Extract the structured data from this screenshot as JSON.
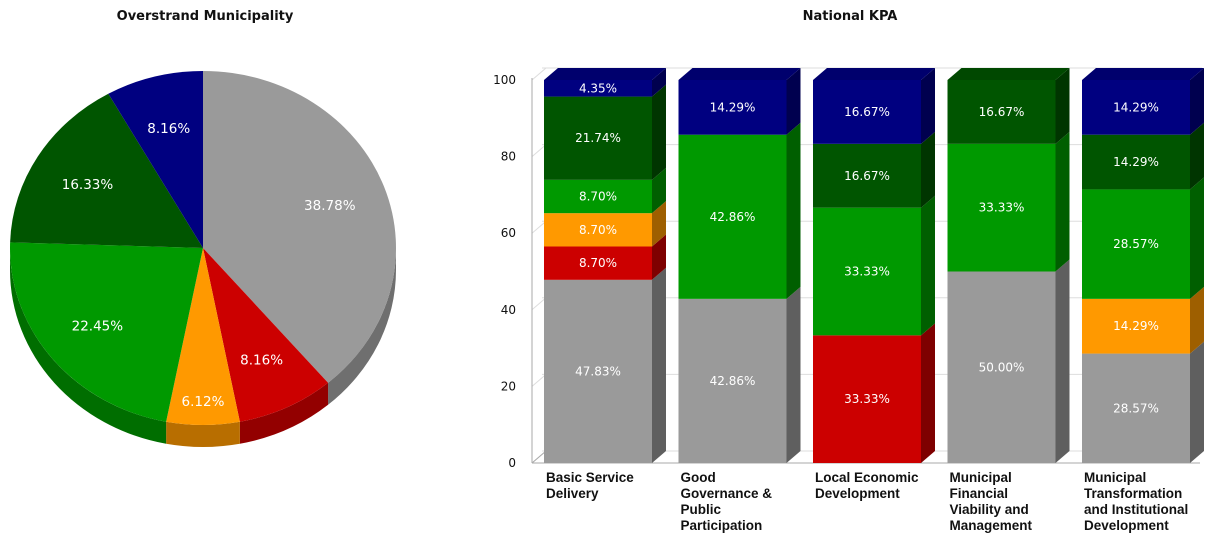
{
  "chart_data": [
    {
      "type": "pie",
      "title": "Overstrand Municipality",
      "slices": [
        {
          "value": 38.78,
          "label": "38.78%",
          "color": "#9a9a9a"
        },
        {
          "value": 8.16,
          "label": "8.16%",
          "color": "#cc0000"
        },
        {
          "value": 6.12,
          "label": "6.12%",
          "color": "#ff9900"
        },
        {
          "value": 22.45,
          "label": "22.45%",
          "color": "#009900"
        },
        {
          "value": 16.33,
          "label": "16.33%",
          "color": "#005500"
        },
        {
          "value": 8.16,
          "label": "8.16%",
          "color": "#000080"
        }
      ]
    },
    {
      "type": "bar",
      "stacked": true,
      "title": "National KPA",
      "ylim": [
        0,
        100
      ],
      "yticks": [
        0,
        20,
        40,
        60,
        80,
        100
      ],
      "categories": [
        "Basic Service Delivery",
        "Good Governance & Public Participation",
        "Local Economic Development",
        "Municipal Financial Viability and Management",
        "Municipal Transformation and Institutional Development"
      ],
      "series": [
        {
          "color": "#9a9a9a",
          "values": [
            47.83,
            42.86,
            0,
            50.0,
            28.57
          ],
          "labels": [
            "47.83%",
            "42.86%",
            "",
            "50.00%",
            "28.57%"
          ]
        },
        {
          "color": "#cc0000",
          "values": [
            8.7,
            0,
            33.33,
            0,
            0
          ],
          "labels": [
            "8.70%",
            "",
            "33.33%",
            "",
            ""
          ]
        },
        {
          "color": "#ff9900",
          "values": [
            8.7,
            0,
            0,
            0,
            14.29
          ],
          "labels": [
            "8.70%",
            "",
            "",
            "",
            "14.29%"
          ]
        },
        {
          "color": "#009900",
          "values": [
            8.7,
            42.86,
            33.33,
            33.33,
            28.57
          ],
          "labels": [
            "8.70%",
            "42.86%",
            "33.33%",
            "33.33%",
            "28.57%"
          ]
        },
        {
          "color": "#005500",
          "values": [
            21.74,
            0,
            16.67,
            16.67,
            14.29
          ],
          "labels": [
            "21.74%",
            "",
            "16.67%",
            "16.67%",
            "14.29%"
          ]
        },
        {
          "color": "#000080",
          "values": [
            4.35,
            14.29,
            16.67,
            0,
            14.29
          ],
          "labels": [
            "4.35%",
            "14.29%",
            "16.67%",
            "",
            "14.29%"
          ]
        }
      ]
    }
  ]
}
